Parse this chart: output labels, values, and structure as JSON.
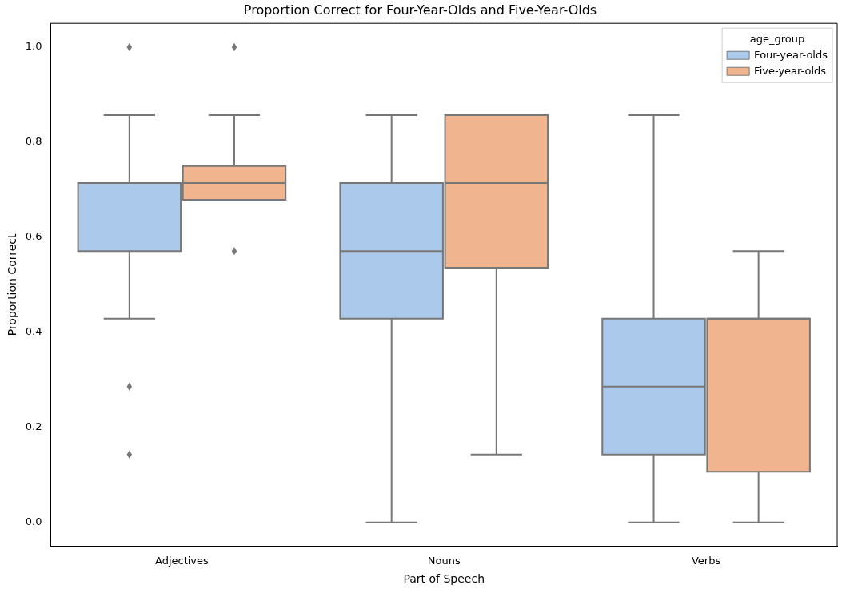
{
  "chart_data": {
    "type": "box",
    "title": "Proportion Correct for Four-Year-Olds and Five-Year-Olds",
    "xlabel": "Part of Speech",
    "ylabel": "Proportion Correct",
    "legend_title": "age_group",
    "legend": "top right",
    "marker": "diamond",
    "categories": [
      "Adjectives",
      "Nouns",
      "Verbs"
    ],
    "series": [
      {
        "name": "Four-year-olds",
        "color": "#abc9ea",
        "boxes": [
          {
            "low": 0.429,
            "q1": 0.571,
            "median": 0.714,
            "q3": 0.714,
            "high": 0.857,
            "outliers": [
              1.0,
              0.286,
              0.143
            ]
          },
          {
            "low": 0,
            "q1": 0.429,
            "median": 0.571,
            "q3": 0.714,
            "high": 0.857
          },
          {
            "low": 0,
            "q1": 0.143,
            "median": 0.286,
            "q3": 0.429,
            "high": 0.857
          }
        ]
      },
      {
        "name": "Five-year-olds",
        "color": "#f0b58f",
        "boxes": [
          {
            "low": 0.679,
            "q1": 0.679,
            "median": 0.714,
            "q3": 0.75,
            "high": 0.857,
            "outliers": [
              1.0,
              0.571
            ]
          },
          {
            "low": 0.143,
            "q1": 0.536,
            "median": 0.714,
            "q3": 0.857,
            "high": 0.857
          },
          {
            "low": 0,
            "q1": 0.107,
            "median": 0.429,
            "q3": 0.429,
            "high": 0.571
          }
        ]
      }
    ],
    "ylim": [
      -0.05,
      1.05
    ],
    "yticks": [
      {
        "value": 0,
        "label": "0.0"
      },
      {
        "value": 0.2,
        "label": "0.2"
      },
      {
        "value": 0.4,
        "label": "0.4"
      },
      {
        "value": 0.6,
        "label": "0.6"
      },
      {
        "value": 0.8,
        "label": "0.8"
      },
      {
        "value": 1,
        "label": "1.0"
      }
    ]
  }
}
